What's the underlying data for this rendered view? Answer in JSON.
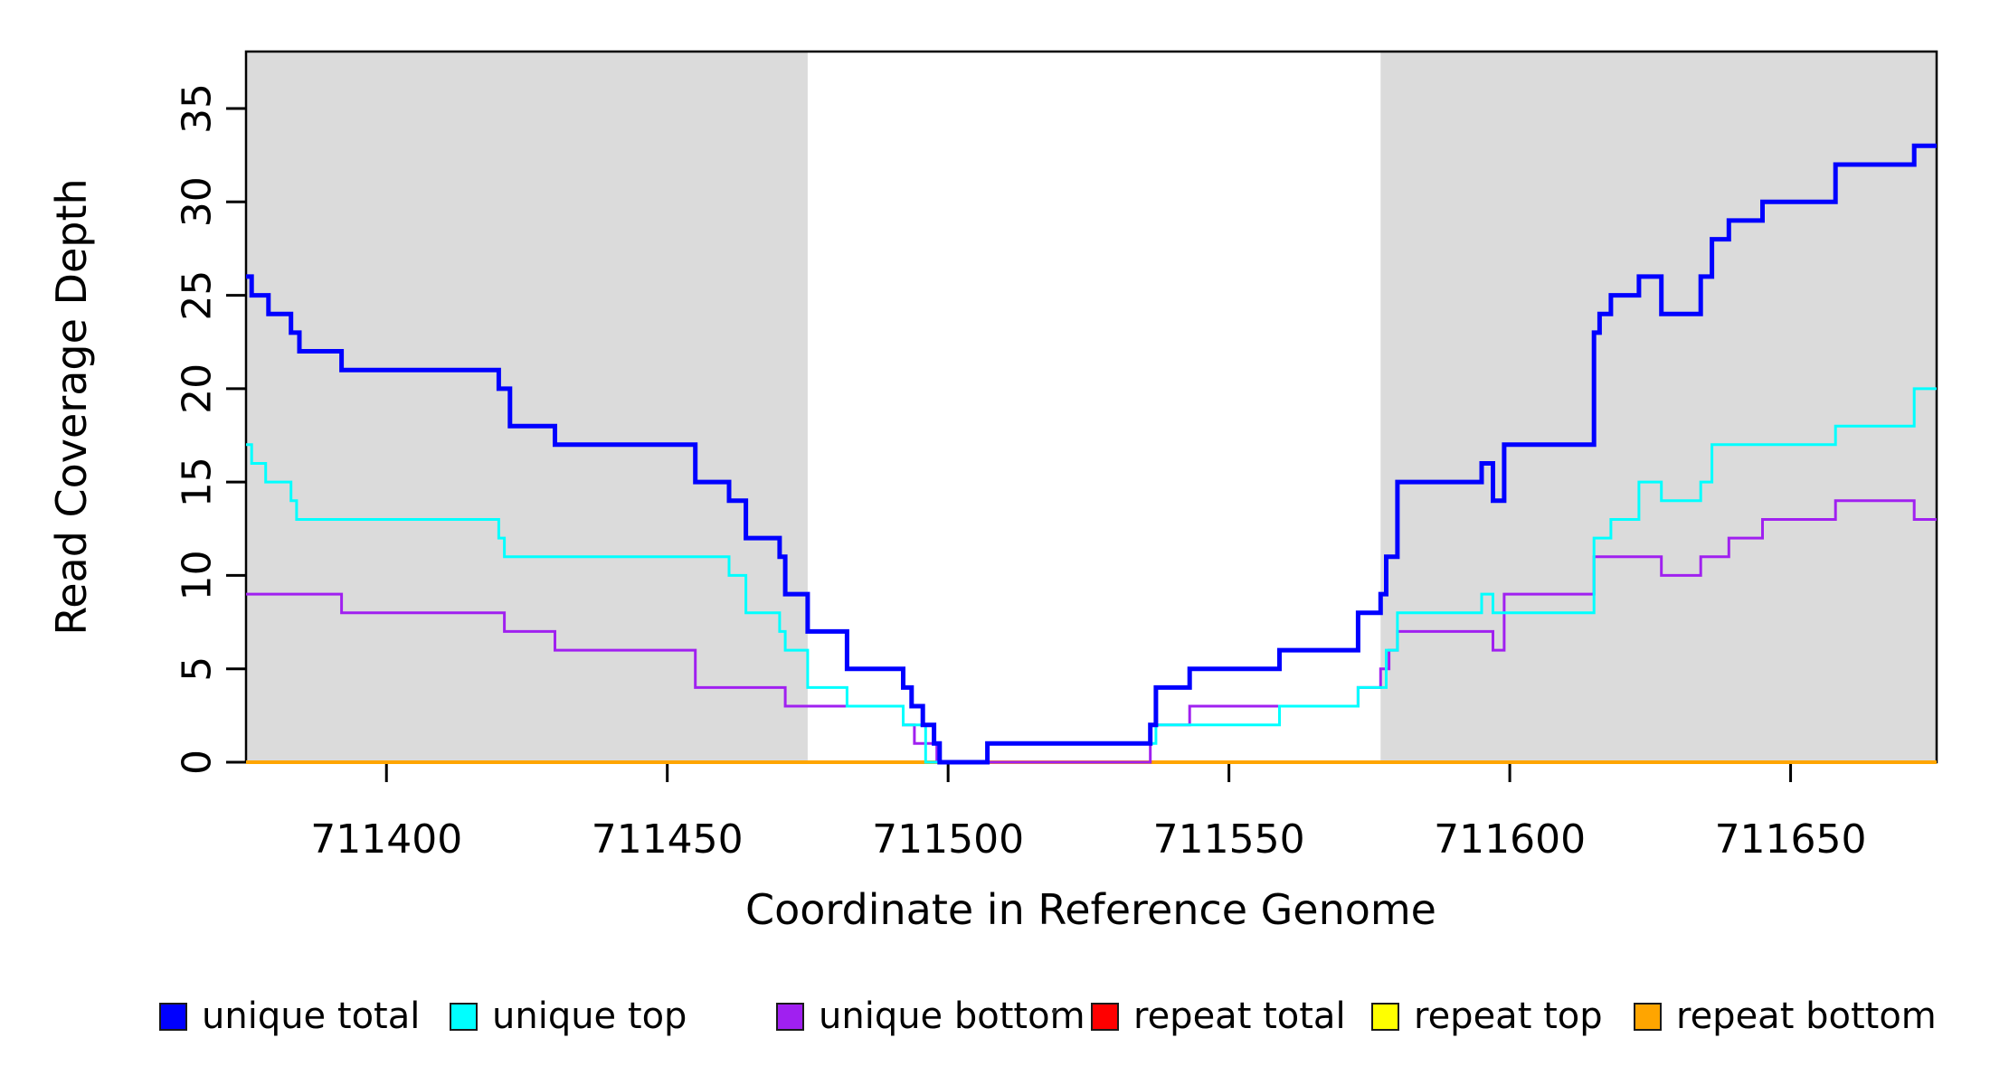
{
  "chart_data": {
    "type": "line",
    "subtype": "step",
    "title": "",
    "xlabel": "Coordinate in Reference Genome",
    "ylabel": "Read Coverage Depth",
    "xlim": [
      711375,
      711676
    ],
    "ylim": [
      0,
      38
    ],
    "x_ticks": [
      711400,
      711450,
      711500,
      711550,
      711600,
      711650
    ],
    "y_ticks": [
      0,
      5,
      10,
      15,
      20,
      25,
      30,
      35
    ],
    "grid": "off",
    "legend_position": "bottom",
    "shaded_regions": [
      {
        "x0": 711375,
        "x1": 711475,
        "color": "#DBDBDB"
      },
      {
        "x0": 711577,
        "x1": 711676,
        "color": "#DBDBDB"
      }
    ],
    "series": [
      {
        "name": "unique total",
        "color": "#0000FF",
        "width": 5,
        "z": 6,
        "points": [
          [
            711375,
            26
          ],
          [
            711376,
            25
          ],
          [
            711379,
            24
          ],
          [
            711383,
            23
          ],
          [
            711384.5,
            22
          ],
          [
            711392,
            21
          ],
          [
            711420,
            20
          ],
          [
            711422,
            18
          ],
          [
            711430,
            17
          ],
          [
            711455,
            15
          ],
          [
            711461,
            14
          ],
          [
            711464,
            12
          ],
          [
            711470,
            11
          ],
          [
            711471,
            9
          ],
          [
            711475,
            7
          ],
          [
            711482,
            5
          ],
          [
            711492,
            4
          ],
          [
            711493.5,
            3
          ],
          [
            711495.5,
            2
          ],
          [
            711497.5,
            1
          ],
          [
            711498.5,
            0
          ],
          [
            711507,
            1
          ],
          [
            711536,
            2
          ],
          [
            711537,
            4
          ],
          [
            711543,
            5
          ],
          [
            711559,
            6
          ],
          [
            711573,
            8
          ],
          [
            711577,
            9
          ],
          [
            711578,
            11
          ],
          [
            711580,
            15
          ],
          [
            711595,
            16
          ],
          [
            711597,
            14
          ],
          [
            711599,
            17
          ],
          [
            711615,
            23
          ],
          [
            711616,
            24
          ],
          [
            711618,
            25
          ],
          [
            711623,
            26
          ],
          [
            711627,
            24
          ],
          [
            711634,
            26
          ],
          [
            711636,
            28
          ],
          [
            711639,
            29
          ],
          [
            711645,
            30
          ],
          [
            711658,
            32
          ],
          [
            711672,
            33
          ],
          [
            711676,
            33
          ]
        ]
      },
      {
        "name": "unique top",
        "color": "#00FFFF",
        "width": 3,
        "z": 5,
        "points": [
          [
            711375,
            17
          ],
          [
            711376,
            16
          ],
          [
            711378.5,
            15
          ],
          [
            711383,
            14
          ],
          [
            711384,
            13
          ],
          [
            711420,
            12
          ],
          [
            711421,
            11
          ],
          [
            711461,
            10
          ],
          [
            711464,
            8
          ],
          [
            711470,
            7
          ],
          [
            711471,
            6
          ],
          [
            711475,
            4
          ],
          [
            711482,
            3
          ],
          [
            711492,
            2
          ],
          [
            711496,
            0
          ],
          [
            711507,
            1
          ],
          [
            711537,
            2
          ],
          [
            711559,
            3
          ],
          [
            711573,
            4
          ],
          [
            711578,
            6
          ],
          [
            711580,
            8
          ],
          [
            711595,
            9
          ],
          [
            711597,
            8
          ],
          [
            711615,
            12
          ],
          [
            711618,
            13
          ],
          [
            711623,
            15
          ],
          [
            711627,
            14
          ],
          [
            711634,
            15
          ],
          [
            711636,
            17
          ],
          [
            711658,
            18
          ],
          [
            711672,
            20
          ],
          [
            711676,
            20
          ]
        ]
      },
      {
        "name": "unique bottom",
        "color": "#A020F0",
        "width": 3,
        "z": 4,
        "points": [
          [
            711375,
            9
          ],
          [
            711392,
            8
          ],
          [
            711421,
            7
          ],
          [
            711430,
            6
          ],
          [
            711455,
            4
          ],
          [
            711471,
            3
          ],
          [
            711492,
            2
          ],
          [
            711494,
            1
          ],
          [
            711498,
            0
          ],
          [
            711536,
            2
          ],
          [
            711543,
            3
          ],
          [
            711573,
            4
          ],
          [
            711577,
            5
          ],
          [
            711578.5,
            6
          ],
          [
            711580,
            7
          ],
          [
            711597,
            6
          ],
          [
            711599,
            9
          ],
          [
            711615,
            11
          ],
          [
            711627,
            10
          ],
          [
            711634,
            11
          ],
          [
            711639,
            12
          ],
          [
            711645,
            13
          ],
          [
            711658,
            14
          ],
          [
            711672,
            13
          ],
          [
            711676,
            13
          ]
        ]
      },
      {
        "name": "repeat total",
        "color": "#FF0000",
        "width": 4,
        "z": 1,
        "points": [
          [
            711375,
            0
          ],
          [
            711676,
            0
          ]
        ]
      },
      {
        "name": "repeat top",
        "color": "#FFFF00",
        "width": 4,
        "z": 2,
        "points": [
          [
            711375,
            0
          ],
          [
            711676,
            0
          ]
        ]
      },
      {
        "name": "repeat bottom",
        "color": "#FFA500",
        "width": 4,
        "z": 3,
        "points": [
          [
            711375,
            0
          ],
          [
            711676,
            0
          ]
        ]
      }
    ],
    "legend": [
      {
        "label": "unique total",
        "color": "#0000FF"
      },
      {
        "label": "unique top",
        "color": "#00FFFF"
      },
      {
        "label": "unique bottom",
        "color": "#A020F0"
      },
      {
        "label": "repeat total",
        "color": "#FF0000"
      },
      {
        "label": "repeat top",
        "color": "#FFFF00"
      },
      {
        "label": "repeat bottom",
        "color": "#FFA500"
      }
    ]
  }
}
